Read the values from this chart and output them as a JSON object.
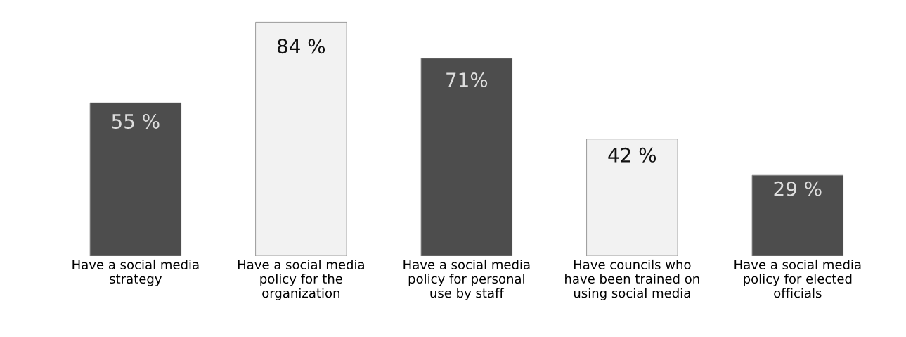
{
  "chart_data": {
    "type": "bar",
    "categories": [
      "Have a social media strategy",
      "Have a social media policy for the organization",
      "Have a social media policy for personal use by staff",
      "Have councils who have been trained on using social media",
      "Have a social media policy for elected officials"
    ],
    "values": [
      55,
      84,
      71,
      42,
      29
    ],
    "colors": [
      "#4d4d4d",
      "#f2f2f2",
      "#4d4d4d",
      "#f2f2f2",
      "#4d4d4d"
    ],
    "value_labels": [
      "55 %",
      "84 %",
      "71%",
      "42 %",
      "29 %"
    ],
    "grid": false,
    "tick_labels": "x"
  }
}
